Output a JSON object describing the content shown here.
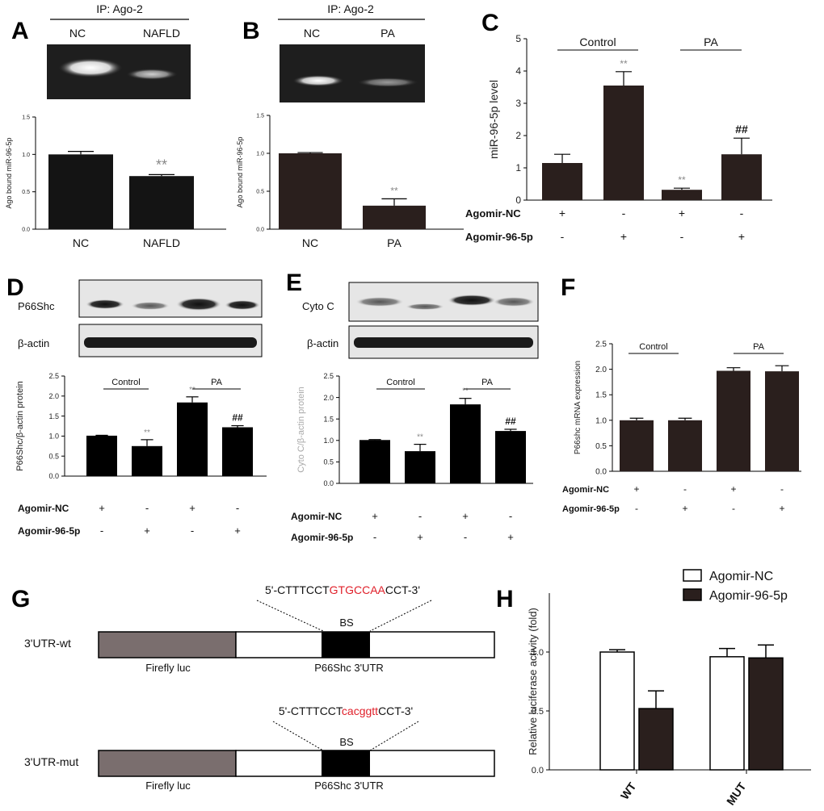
{
  "colors": {
    "bar_dark": "#2a1f1d",
    "bar_black": "#141414",
    "red_seq": "#e0202a",
    "gel_bg": "#1e1e1e",
    "blot_bg": "#e6e6e6"
  },
  "chart_data": [
    {
      "id": "A",
      "type": "bar",
      "panel_label": "A",
      "blot_title": "IP: Ago-2",
      "lanes": [
        "NC",
        "NAFLD"
      ],
      "ylabel": "Ago bound miR-96-5p",
      "ylim": [
        0,
        1.5
      ],
      "yticks": [
        "0.0",
        "0.5",
        "1.0",
        "1.5"
      ],
      "categories": [
        "NC",
        "NAFLD"
      ],
      "values": [
        1.0,
        0.71
      ],
      "errors": [
        0.04,
        0.02
      ],
      "sig": [
        "",
        "**"
      ]
    },
    {
      "id": "B",
      "type": "bar",
      "panel_label": "B",
      "blot_title": "IP: Ago-2",
      "lanes": [
        "NC",
        "PA"
      ],
      "ylabel": "Ago bound miR-96-5p",
      "ylim": [
        0,
        1.5
      ],
      "yticks": [
        "0.0",
        "0.5",
        "1.0",
        "1.5"
      ],
      "categories": [
        "NC",
        "PA"
      ],
      "values": [
        1.0,
        0.31
      ],
      "errors": [
        0.01,
        0.09
      ],
      "sig": [
        "",
        "**"
      ]
    },
    {
      "id": "C",
      "type": "bar",
      "panel_label": "C",
      "ylabel": "miR-96-5p level",
      "ylim": [
        0,
        5
      ],
      "yticks": [
        "0",
        "1",
        "2",
        "3",
        "4",
        "5"
      ],
      "groups": [
        "Control",
        "PA"
      ],
      "values": [
        1.15,
        3.55,
        0.32,
        1.42
      ],
      "errors": [
        0.27,
        0.43,
        0.05,
        0.5
      ],
      "sig": [
        "",
        "**",
        "**",
        "##"
      ],
      "row_labels": [
        "Agomir-NC",
        "Agomir-96-5p"
      ],
      "row_signs": [
        [
          "+",
          "-",
          "+",
          "-"
        ],
        [
          "-",
          "+",
          "-",
          "+"
        ]
      ]
    },
    {
      "id": "D",
      "type": "bar",
      "panel_label": "D",
      "blot_labels": [
        "P66Shc",
        "β-actin"
      ],
      "ylabel": "P66Shc/β-actin protein",
      "ylim": [
        0,
        2.5
      ],
      "yticks": [
        "0.0",
        "0.5",
        "1.0",
        "1.5",
        "2.0",
        "2.5"
      ],
      "groups": [
        "Control",
        "PA"
      ],
      "values": [
        1.01,
        0.75,
        1.84,
        1.22
      ],
      "errors": [
        0.01,
        0.16,
        0.14,
        0.04
      ],
      "sig": [
        "",
        "**",
        "**",
        "##"
      ],
      "row_labels": [
        "Agomir-NC",
        "Agomir-96-5p"
      ],
      "row_signs": [
        [
          "+",
          "-",
          "+",
          "-"
        ],
        [
          "-",
          "+",
          "-",
          "+"
        ]
      ]
    },
    {
      "id": "E",
      "type": "bar",
      "panel_label": "E",
      "blot_labels": [
        "Cyto C",
        "β-actin"
      ],
      "ylabel": "Cyto C/β-actin protein",
      "ylim": [
        0,
        2.5
      ],
      "yticks": [
        "0.0",
        "0.5",
        "1.0",
        "1.5",
        "2.0",
        "2.5"
      ],
      "groups": [
        "Control",
        "PA"
      ],
      "values": [
        1.01,
        0.75,
        1.84,
        1.22
      ],
      "errors": [
        0.01,
        0.16,
        0.14,
        0.04
      ],
      "sig": [
        "",
        "**",
        "**",
        "##"
      ],
      "row_labels": [
        "Agomir-NC",
        "Agomir-96-5p"
      ],
      "row_signs": [
        [
          "+",
          "-",
          "+",
          "-"
        ],
        [
          "-",
          "+",
          "-",
          "+"
        ]
      ]
    },
    {
      "id": "F",
      "type": "bar",
      "panel_label": "F",
      "ylabel": "P66shc mRNA expression",
      "ylim": [
        0,
        2.5
      ],
      "yticks": [
        "0.0",
        "0.5",
        "1.0",
        "1.5",
        "2.0",
        "2.5"
      ],
      "groups": [
        "Control",
        "PA"
      ],
      "values": [
        1.0,
        1.0,
        1.97,
        1.96
      ],
      "errors": [
        0.04,
        0.04,
        0.06,
        0.11
      ],
      "sig": [
        "",
        "",
        "",
        ""
      ],
      "row_labels": [
        "Agomir-NC",
        "Agomir-96-5p"
      ],
      "row_signs": [
        [
          "+",
          "-",
          "+",
          "-"
        ],
        [
          "-",
          "+",
          "-",
          "+"
        ]
      ]
    },
    {
      "id": "H",
      "type": "bar",
      "panel_label": "H",
      "ylabel": "Relative luciferase activity (fold)",
      "ylim": [
        0,
        1.5
      ],
      "yticks": [
        "0.0",
        "0.5",
        "1.0"
      ],
      "categories": [
        "WT",
        "MUT"
      ],
      "legend_position": "top-right",
      "series": [
        {
          "name": "Agomir-NC",
          "values": [
            1.0,
            0.96
          ],
          "errors": [
            0.02,
            0.07
          ]
        },
        {
          "name": "Agomir-96-5p",
          "values": [
            0.52,
            0.95
          ],
          "errors": [
            0.15,
            0.11
          ]
        }
      ]
    }
  ],
  "diagram": {
    "panel_label": "G",
    "wt": {
      "label": "3'UTR-wt",
      "seq_pre": "5'-CTTTCCT",
      "seq_site": "GTGCCAA",
      "seq_post": "CCT-3'",
      "site": "BS",
      "firefly": "Firefly luc",
      "utr": "P66Shc 3'UTR"
    },
    "mut": {
      "label": "3'UTR-mut",
      "seq_pre": "5'-CTTTCCT",
      "seq_site": "cacggtt",
      "seq_post": "CCT-3'",
      "site": "BS",
      "firefly": "Firefly luc",
      "utr": "P66Shc 3'UTR"
    }
  }
}
